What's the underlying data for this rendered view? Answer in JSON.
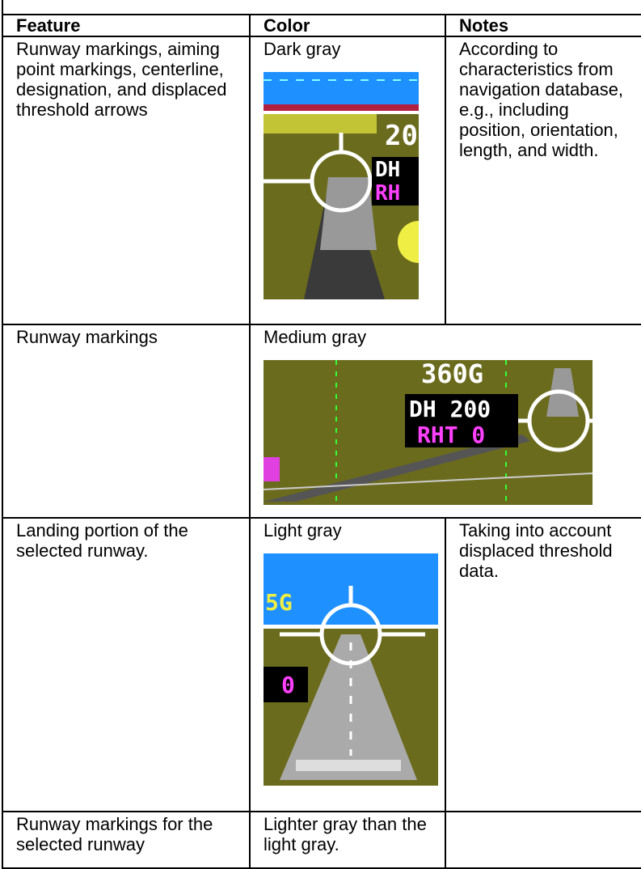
{
  "table": {
    "header": [
      "Feature",
      "Color",
      "Notes"
    ],
    "rows": [
      [
        "Runway markings, aiming point markings, centerline, designation, and displaced threshold arrows",
        "Dark gray",
        "According to characteristics from navigation database, e.g., including position, orientation, length, and width."
      ],
      [
        "Runway markings",
        "Medium gray"
      ],
      [
        "Landing portion of the selected runway.",
        "Light gray",
        "Taking into account displaced threshold data."
      ],
      [
        "Runway markings for the selected runway",
        "Lighter gray than the light gray."
      ]
    ]
  },
  "images": [
    {
      "labels": [
        "20",
        "DH",
        "RH"
      ]
    },
    {
      "labels": [
        "360G",
        "DH 200",
        "RHT 0"
      ]
    },
    {
      "labels": [
        "5G",
        "0"
      ]
    }
  ]
}
